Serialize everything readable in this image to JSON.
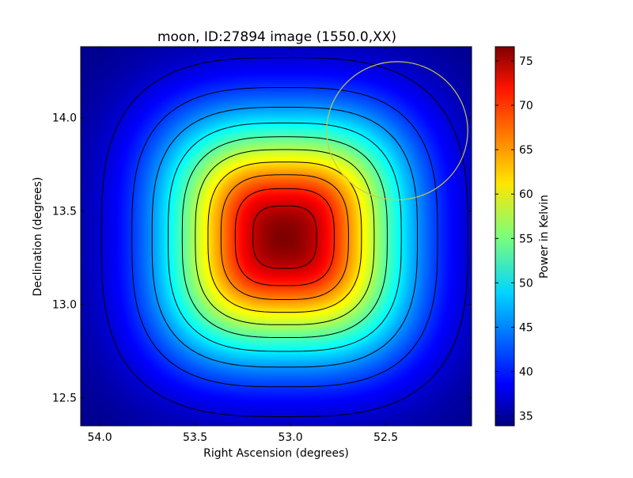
{
  "chart_data": {
    "type": "heatmap",
    "title": "moon, ID:27894 image (1550.0,XX)",
    "xlabel": "Right Ascension (degrees)",
    "ylabel": "Declination (degrees)",
    "colorbar_label": "Power in Kelvin",
    "x_inverted": true,
    "xlim": [
      54.1,
      52.05
    ],
    "ylim": [
      12.35,
      14.38
    ],
    "x_ticks": [
      {
        "value": 54.0,
        "label": "54.0"
      },
      {
        "value": 53.5,
        "label": "53.5"
      },
      {
        "value": 53.0,
        "label": "53.0"
      },
      {
        "value": 52.5,
        "label": "52.5"
      }
    ],
    "y_ticks": [
      {
        "value": 12.5,
        "label": "12.5"
      },
      {
        "value": 13.0,
        "label": "13.0"
      },
      {
        "value": 13.5,
        "label": "13.5"
      },
      {
        "value": 14.0,
        "label": "14.0"
      }
    ],
    "colorbar": {
      "range": [
        33.9,
        76.6
      ],
      "colormap": "jet",
      "ticks": [
        {
          "value": 35,
          "label": "35"
        },
        {
          "value": 40,
          "label": "40"
        },
        {
          "value": 45,
          "label": "45"
        },
        {
          "value": 50,
          "label": "50"
        },
        {
          "value": 55,
          "label": "55"
        },
        {
          "value": 60,
          "label": "60"
        },
        {
          "value": 65,
          "label": "65"
        },
        {
          "value": 70,
          "label": "70"
        },
        {
          "value": 75,
          "label": "75"
        }
      ]
    },
    "source": {
      "center_ra": 53.03,
      "center_dec": 13.36,
      "peak_kelvin": 76.6,
      "background_kelvin": 34,
      "width_deg": 0.43,
      "shape_exponent": 3
    },
    "contour_levels": [
      37.5,
      41.5,
      45.5,
      49.5,
      53.5,
      57.5,
      61.5,
      65.5,
      69.5,
      73.5
    ],
    "contour_color": "#000000",
    "circle": {
      "center_ra": 52.44,
      "center_dec": 13.93,
      "radius_deg": 0.37,
      "color": "#c8c850"
    }
  }
}
